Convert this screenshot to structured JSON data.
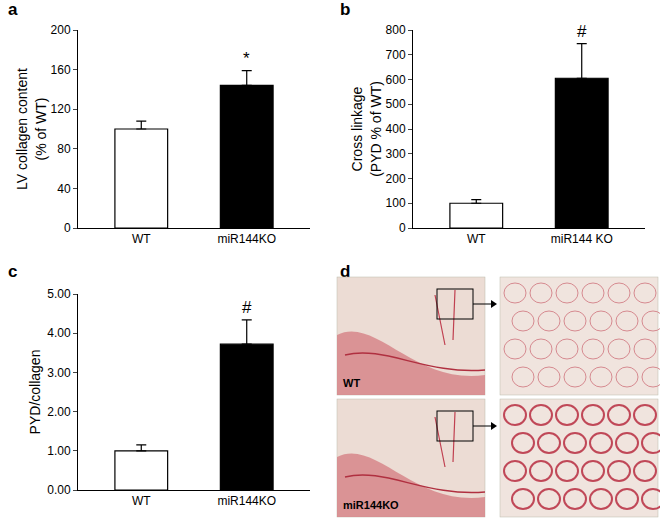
{
  "chart_data": [
    {
      "type": "bar",
      "panel": "a",
      "y_label": "LV collagen content\n(% of WT)",
      "categories": [
        "WT",
        "miR144KO"
      ],
      "values": [
        100,
        144
      ],
      "error_bars": [
        8,
        15
      ],
      "colors": [
        "#ffffff",
        "#000000"
      ],
      "ylim": [
        0,
        200
      ],
      "yticks": [
        0,
        40,
        80,
        120,
        160,
        200
      ],
      "grid": false,
      "annotations": [
        {
          "text": "*",
          "category": "miR144KO"
        }
      ]
    },
    {
      "type": "bar",
      "panel": "b",
      "y_label": "Cross linkage\n(PYD % of WT)",
      "categories": [
        "WT",
        "miR144 KO"
      ],
      "values": [
        100,
        605
      ],
      "error_bars": [
        15,
        140
      ],
      "colors": [
        "#ffffff",
        "#000000"
      ],
      "ylim": [
        0,
        800
      ],
      "yticks": [
        0,
        100,
        200,
        300,
        400,
        500,
        600,
        700,
        800
      ],
      "grid": false,
      "annotations": [
        {
          "text": "#",
          "category": "miR144 KO"
        }
      ]
    },
    {
      "type": "bar",
      "panel": "c",
      "y_label": "PYD/collagen",
      "categories": [
        "WT",
        "miR144KO"
      ],
      "values": [
        1.0,
        3.72
      ],
      "error_bars": [
        0.15,
        0.62
      ],
      "colors": [
        "#ffffff",
        "#000000"
      ],
      "ylim": [
        0,
        5
      ],
      "yticks": [
        {
          "value": 0,
          "label": "0.00"
        },
        {
          "value": 1,
          "label": "1.00"
        },
        {
          "value": 2,
          "label": "2.00"
        },
        {
          "value": 3,
          "label": "3.00"
        },
        {
          "value": 4,
          "label": "4.00"
        },
        {
          "value": 5,
          "label": "5.00"
        }
      ],
      "grid": false,
      "annotations": [
        {
          "text": "#",
          "category": "miR144KO"
        }
      ]
    }
  ],
  "image_panel": {
    "panel": "d",
    "labels": [
      "WT",
      "miR144KO"
    ]
  }
}
